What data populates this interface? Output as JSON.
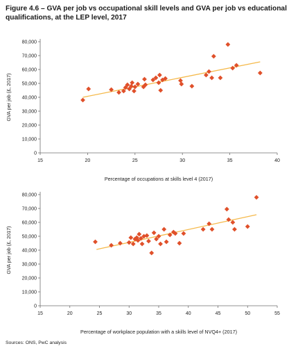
{
  "title": "Figure 4.6 – GVA per job vs occupational skill levels and GVA per job vs educational qualifications, at the LEP level, 2017",
  "source": "Sources: ONS, PwC analysis",
  "colors": {
    "marker": "#e0502a",
    "trend": "#f5b94a",
    "axis": "#6f6f6f"
  },
  "chart_data": [
    {
      "type": "scatter",
      "xlabel": "Percentage of occupations at skills level 4 (2017)",
      "ylabel": "GVA per job (£, 2017)",
      "xlim": [
        15,
        40
      ],
      "ylim": [
        0,
        80000
      ],
      "xticks": [
        "15",
        "20",
        "25",
        "30",
        "35",
        "40"
      ],
      "yticks": [
        "0",
        "10,000",
        "20,000",
        "30,000",
        "40,000",
        "50,000",
        "60,000",
        "70,000",
        "80,000"
      ],
      "trendline": {
        "x": [
          19.5,
          38.2
        ],
        "y": [
          40000,
          65500
        ]
      },
      "points": [
        [
          19.5,
          38000
        ],
        [
          20.1,
          46000
        ],
        [
          22.5,
          45500
        ],
        [
          23.3,
          43500
        ],
        [
          23.8,
          44500
        ],
        [
          24.0,
          47000
        ],
        [
          24.2,
          49000
        ],
        [
          24.4,
          46000
        ],
        [
          24.6,
          48000
        ],
        [
          24.7,
          50500
        ],
        [
          24.9,
          44500
        ],
        [
          25.0,
          47500
        ],
        [
          25.3,
          49500
        ],
        [
          25.9,
          47500
        ],
        [
          26.0,
          53000
        ],
        [
          26.1,
          49000
        ],
        [
          26.9,
          52500
        ],
        [
          27.2,
          54000
        ],
        [
          27.5,
          50500
        ],
        [
          27.6,
          56000
        ],
        [
          27.7,
          45000
        ],
        [
          27.9,
          52500
        ],
        [
          28.2,
          53500
        ],
        [
          29.8,
          52000
        ],
        [
          29.9,
          49500
        ],
        [
          31.0,
          48000
        ],
        [
          32.5,
          56000
        ],
        [
          32.8,
          58500
        ],
        [
          33.1,
          54000
        ],
        [
          33.3,
          69500
        ],
        [
          34.0,
          54000
        ],
        [
          34.8,
          78000
        ],
        [
          35.3,
          61000
        ],
        [
          35.7,
          63000
        ],
        [
          38.2,
          57500
        ]
      ]
    },
    {
      "type": "scatter",
      "xlabel": "Percentage of workplace population with a skills level of NVQ4+ (2017)",
      "ylabel": "GVA per job (£, 2017)",
      "xlim": [
        15,
        55
      ],
      "ylim": [
        0,
        80000
      ],
      "xticks": [
        "15",
        "20",
        "25",
        "30",
        "35",
        "40",
        "45",
        "50",
        "55"
      ],
      "yticks": [
        "0",
        "10,000",
        "20,000",
        "30,000",
        "40,000",
        "50,000",
        "60,000",
        "70,000",
        "80,000"
      ],
      "trendline": {
        "x": [
          24.5,
          51.5
        ],
        "y": [
          40500,
          65500
        ]
      },
      "points": [
        [
          24.3,
          46000
        ],
        [
          27.0,
          43500
        ],
        [
          28.5,
          45000
        ],
        [
          30.0,
          45500
        ],
        [
          30.3,
          49000
        ],
        [
          30.7,
          44500
        ],
        [
          31.0,
          48000
        ],
        [
          31.3,
          49000
        ],
        [
          31.5,
          47000
        ],
        [
          31.7,
          51500
        ],
        [
          32.0,
          48500
        ],
        [
          32.2,
          44500
        ],
        [
          32.5,
          50000
        ],
        [
          33.0,
          50500
        ],
        [
          33.3,
          46500
        ],
        [
          33.8,
          38000
        ],
        [
          34.2,
          52500
        ],
        [
          34.6,
          48000
        ],
        [
          35.0,
          50000
        ],
        [
          35.3,
          44500
        ],
        [
          35.9,
          55000
        ],
        [
          36.3,
          46000
        ],
        [
          36.9,
          51000
        ],
        [
          37.5,
          53000
        ],
        [
          37.8,
          52000
        ],
        [
          38.5,
          45000
        ],
        [
          39.2,
          52000
        ],
        [
          42.5,
          55000
        ],
        [
          43.5,
          59000
        ],
        [
          44.0,
          55000
        ],
        [
          46.5,
          69500
        ],
        [
          46.8,
          62000
        ],
        [
          47.5,
          60000
        ],
        [
          47.8,
          55000
        ],
        [
          50.0,
          57000
        ],
        [
          51.5,
          78000
        ]
      ]
    }
  ]
}
